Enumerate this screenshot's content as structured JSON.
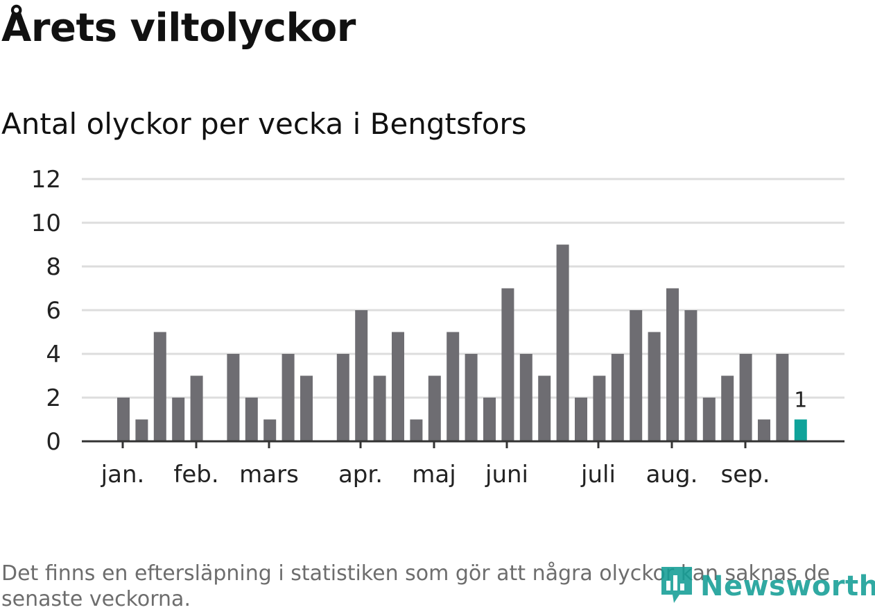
{
  "header": {
    "title": "Årets viltolyckor",
    "subtitle": "Antal olyckor per vecka i Bengtsfors"
  },
  "chart_data": {
    "type": "bar",
    "title": "Årets viltolyckor",
    "subtitle": "Antal olyckor per vecka i Bengtsfors",
    "xlabel": "",
    "ylabel": "",
    "ylim": [
      0,
      12
    ],
    "yticks": [
      0,
      2,
      4,
      6,
      8,
      10,
      12
    ],
    "grid": true,
    "month_labels": [
      {
        "label": "jan.",
        "week": 1
      },
      {
        "label": "feb.",
        "week": 5
      },
      {
        "label": "mars",
        "week": 9
      },
      {
        "label": "apr.",
        "week": 14
      },
      {
        "label": "maj",
        "week": 18
      },
      {
        "label": "juni",
        "week": 22
      },
      {
        "label": "juli",
        "week": 27
      },
      {
        "label": "aug.",
        "week": 31
      },
      {
        "label": "sep.",
        "week": 35
      }
    ],
    "weeks": [
      1,
      2,
      3,
      4,
      5,
      6,
      7,
      8,
      9,
      10,
      11,
      12,
      13,
      14,
      15,
      16,
      17,
      18,
      19,
      20,
      21,
      22,
      23,
      24,
      25,
      26,
      27,
      28,
      29,
      30,
      31,
      32,
      33,
      34,
      35,
      36,
      37,
      38
    ],
    "values": [
      2,
      1,
      5,
      2,
      3,
      0,
      4,
      2,
      1,
      4,
      3,
      0,
      4,
      6,
      3,
      5,
      1,
      3,
      5,
      4,
      2,
      7,
      4,
      3,
      9,
      2,
      3,
      4,
      6,
      5,
      7,
      6,
      2,
      3,
      4,
      1,
      4,
      1
    ],
    "highlight_index": 37,
    "highlight_label": "1",
    "colors": {
      "bar": "#6e6d72",
      "highlight": "#0fa39a",
      "grid": "#dddddd",
      "axis": "#333333"
    }
  },
  "footer": {
    "note": "Det finns en eftersläpning i statistiken som gör att några olyckor kan saknas de senaste veckorna.",
    "logo_text": "Newsworthy",
    "logo_icon": "newsworthy-logo-icon"
  }
}
